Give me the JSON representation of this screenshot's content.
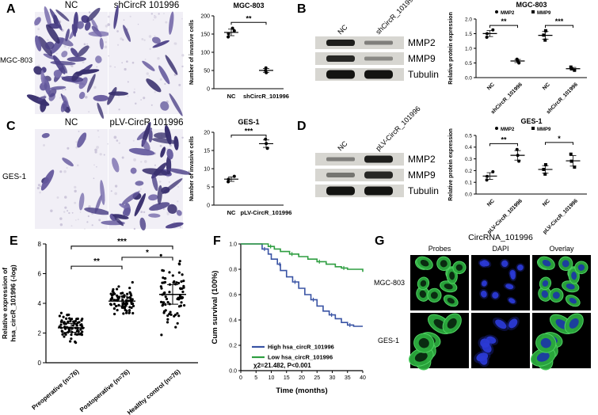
{
  "figure": {
    "panels": {
      "A": {
        "label": "A",
        "row_label": "MGC-803",
        "image_labels": [
          "NC",
          "shCircR 101996"
        ]
      },
      "B": {
        "label": "B",
        "lane_labels": [
          "NC",
          "shCircR_101996"
        ],
        "band_labels": [
          "MMP2",
          "MMP9",
          "Tubulin"
        ]
      },
      "C": {
        "label": "C",
        "row_label": "GES-1",
        "image_labels": [
          "NC",
          "pLV-CircR 101996"
        ]
      },
      "D": {
        "label": "D",
        "lane_labels": [
          "NC",
          "pLV-CircR_101996"
        ],
        "band_labels": [
          "MMP2",
          "MMP9",
          "Tubulin"
        ]
      },
      "E": {
        "label": "E"
      },
      "F": {
        "label": "F"
      },
      "G": {
        "label": "G",
        "title": "CircRNA_101996",
        "column_labels": [
          "Probes",
          "DAPI",
          "Overlay"
        ],
        "row_labels": [
          "MGC-803",
          "GES-1"
        ]
      }
    }
  },
  "chart_data": [
    {
      "id": "chartA",
      "type": "scatter",
      "title": "MGC-803",
      "ylabel": "Number of invasive cells",
      "ylim": [
        0,
        200
      ],
      "yticks": [
        0,
        50,
        100,
        150,
        200
      ],
      "ytick_labels": [
        "0",
        "50",
        "100",
        "150",
        "200"
      ],
      "groups": [
        {
          "label": "NC",
          "marker": "circle",
          "points": [
            142,
            151,
            159,
            166
          ]
        },
        {
          "label": "shCircR_101996",
          "marker": "circle",
          "points": [
            44,
            50,
            57
          ]
        }
      ],
      "significance": [
        {
          "from": 0,
          "to": 1,
          "label": "**",
          "y": 182
        }
      ],
      "xlabel_rotate": false
    },
    {
      "id": "chartB",
      "type": "scatter",
      "title": "MGC-803",
      "ylabel": "Relative protein expression",
      "legend": [
        {
          "label": "MMP2",
          "marker": "circle"
        },
        {
          "label": "MMP9",
          "marker": "square"
        }
      ],
      "ylim": [
        0,
        2
      ],
      "yticks": [
        0,
        0.5,
        1.0,
        1.5,
        2.0
      ],
      "ytick_labels": [
        "0.0",
        "0.5",
        "1.0",
        "1.5",
        "2.0"
      ],
      "groups": [
        {
          "label": "NC",
          "marker": "circle",
          "points": [
            1.38,
            1.5,
            1.63
          ]
        },
        {
          "label": "shCircR_101996",
          "marker": "circle",
          "points": [
            0.5,
            0.57,
            0.63
          ]
        },
        {
          "label": "NC",
          "marker": "square",
          "points": [
            1.28,
            1.45,
            1.6
          ]
        },
        {
          "label": "shCircR_101996",
          "marker": "square",
          "points": [
            0.25,
            0.3,
            0.36
          ]
        }
      ],
      "significance": [
        {
          "from": 0,
          "to": 1,
          "label": "**",
          "y": 1.78
        },
        {
          "from": 2,
          "to": 3,
          "label": "***",
          "y": 1.78
        }
      ],
      "xlabel_rotate": true
    },
    {
      "id": "chartC",
      "type": "scatter",
      "title": "GES-1",
      "ylabel": "Number of invasive cells",
      "ylim": [
        0,
        20
      ],
      "yticks": [
        0,
        5,
        10,
        15,
        20
      ],
      "ytick_labels": [
        "0",
        "5",
        "10",
        "15",
        "20"
      ],
      "groups": [
        {
          "label": "NC",
          "marker": "circle",
          "points": [
            6.4,
            7.1,
            7.9
          ]
        },
        {
          "label": "pLV-CircR_101996",
          "marker": "circle",
          "points": [
            15.6,
            16.9,
            18.1
          ]
        }
      ],
      "significance": [
        {
          "from": 0,
          "to": 1,
          "label": "***",
          "y": 19.2
        }
      ],
      "xlabel_rotate": false
    },
    {
      "id": "chartD",
      "type": "scatter",
      "title": "GES-1",
      "ylabel": "Relative protein expression",
      "legend": [
        {
          "label": "MMP2",
          "marker": "circle"
        },
        {
          "label": "MMP9",
          "marker": "square"
        }
      ],
      "ylim": [
        0,
        0.5
      ],
      "yticks": [
        0,
        0.1,
        0.2,
        0.3,
        0.4,
        0.5
      ],
      "ytick_labels": [
        "0.0",
        "0.1",
        "0.2",
        "0.3",
        "0.4",
        "0.5"
      ],
      "groups": [
        {
          "label": "NC",
          "marker": "circle",
          "points": [
            0.12,
            0.15,
            0.19
          ]
        },
        {
          "label": "pLV-CircR_101996",
          "marker": "circle",
          "points": [
            0.28,
            0.33,
            0.38
          ]
        },
        {
          "label": "NC",
          "marker": "square",
          "points": [
            0.17,
            0.21,
            0.25
          ]
        },
        {
          "label": "pLV-CircR_101996",
          "marker": "square",
          "points": [
            0.23,
            0.28,
            0.34
          ]
        }
      ],
      "significance": [
        {
          "from": 0,
          "to": 1,
          "label": "**",
          "y": 0.43
        },
        {
          "from": 2,
          "to": 3,
          "label": "*",
          "y": 0.44
        }
      ],
      "xlabel_rotate": true
    },
    {
      "id": "chartE",
      "type": "scatter",
      "ylabel": "Relative expression of hsa_circR_101996 (-log)",
      "ylabel_lines": [
        "Relative expression of",
        "hsa_circR_101996 (-log)"
      ],
      "ylim": [
        0,
        8
      ],
      "yticks": [
        0,
        2,
        4,
        6,
        8
      ],
      "groups": [
        {
          "label": "Preoperative (n=76)",
          "n": 76,
          "mean": 2.35,
          "sd": 0.5
        },
        {
          "label": "Postoperative (n=76)",
          "n": 76,
          "mean": 4.15,
          "sd": 0.55
        },
        {
          "label": "Healthy control (n=76)",
          "n": 76,
          "mean": 4.6,
          "sd": 1.1
        }
      ],
      "significance": [
        {
          "from": 0,
          "to": 1,
          "label": "**",
          "y": 6.5
        },
        {
          "from": 1,
          "to": 2,
          "label": "*",
          "y": 7.1
        },
        {
          "from": 0,
          "to": 2,
          "label": "***",
          "y": 7.85
        }
      ]
    },
    {
      "id": "chartF",
      "type": "line",
      "ylabel": "Cum survival (100%)",
      "xlabel": "Time (months)",
      "xlim": [
        0,
        40
      ],
      "ylim": [
        0,
        1
      ],
      "xticks": [
        0,
        5,
        10,
        15,
        20,
        25,
        30,
        35,
        40
      ],
      "yticks": [
        0,
        0.2,
        0.4,
        0.6,
        0.8,
        1.0
      ],
      "ytick_labels": [
        "0.0",
        "0.2",
        "0.4",
        "0.6",
        "0.8",
        "1.0"
      ],
      "annotation": "χ2=21.482, P<0.001",
      "legend_position": "lower-left",
      "series": [
        {
          "name": "High hsa_circR_101996",
          "color": "#3953a4",
          "steps": [
            [
              0,
              1
            ],
            [
              6,
              1
            ],
            [
              7,
              0.96
            ],
            [
              9,
              0.92
            ],
            [
              10,
              0.88
            ],
            [
              12,
              0.84
            ],
            [
              13,
              0.79
            ],
            [
              15,
              0.74
            ],
            [
              17,
              0.7
            ],
            [
              19,
              0.65
            ],
            [
              21,
              0.6
            ],
            [
              23,
              0.56
            ],
            [
              25,
              0.51
            ],
            [
              27,
              0.47
            ],
            [
              29,
              0.44
            ],
            [
              31,
              0.41
            ],
            [
              33,
              0.38
            ],
            [
              35,
              0.36
            ],
            [
              37,
              0.35
            ],
            [
              40,
              0.35
            ]
          ]
        },
        {
          "name": "Low hsa_circR_101996",
          "color": "#2f9e41",
          "steps": [
            [
              0,
              1
            ],
            [
              8,
              1
            ],
            [
              9,
              0.98
            ],
            [
              11,
              0.96
            ],
            [
              13,
              0.94
            ],
            [
              16,
              0.92
            ],
            [
              19,
              0.9
            ],
            [
              22,
              0.88
            ],
            [
              25,
              0.86
            ],
            [
              28,
              0.84
            ],
            [
              31,
              0.82
            ],
            [
              33,
              0.81
            ],
            [
              35,
              0.8
            ],
            [
              40,
              0.78
            ]
          ]
        }
      ]
    }
  ]
}
